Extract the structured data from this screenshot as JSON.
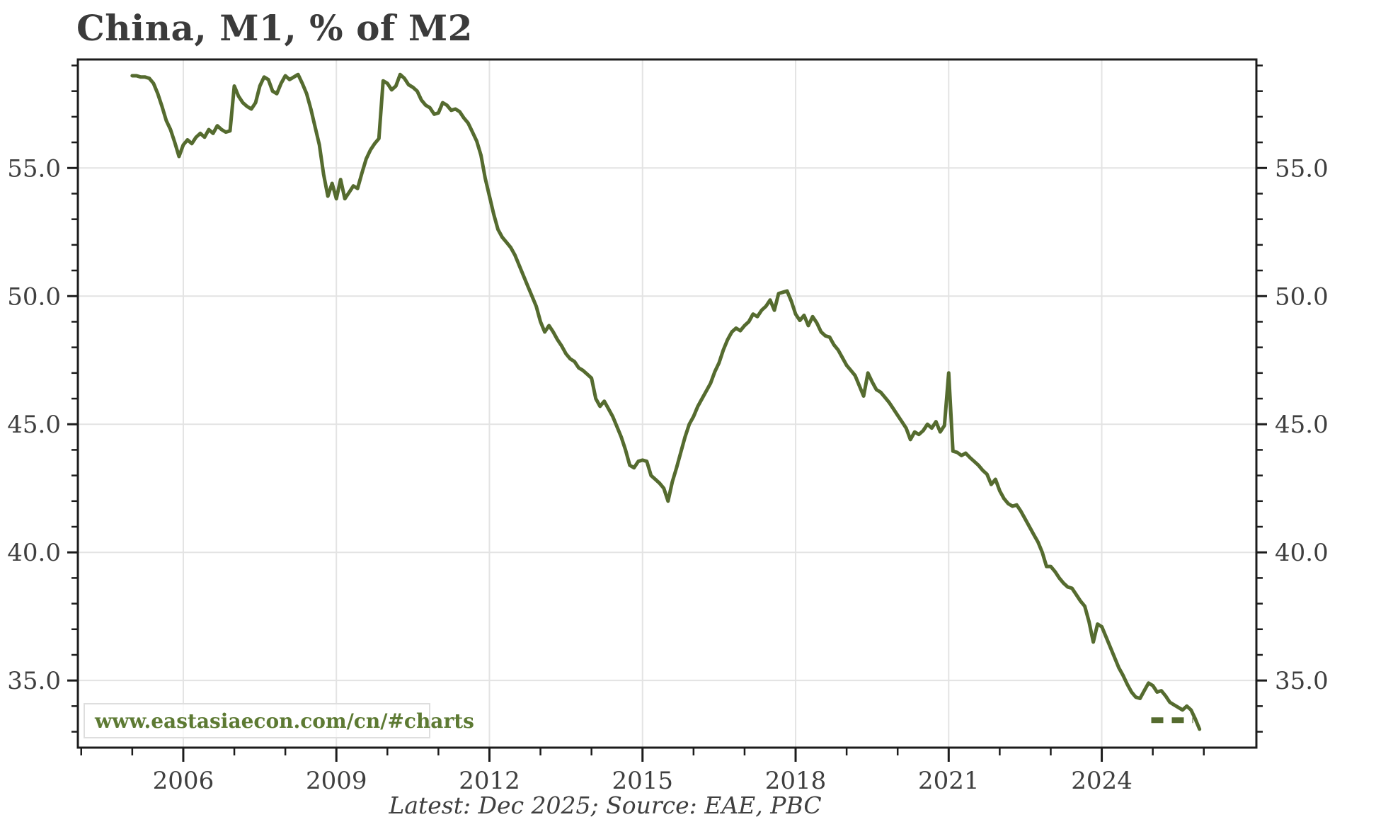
{
  "chart_data": {
    "type": "line",
    "title": "China, M1, % of M2",
    "caption": "Latest: Dec 2025; Source: EAE, PBC",
    "watermark": "www.eastasiaecon.com/cn/#charts",
    "line_color": "#556b2f",
    "grid": true,
    "grid_color": "#e3e3e3",
    "axis_color": "#1c1c1c",
    "label_color": "#3f3f3f",
    "x_axis": {
      "range": [
        2003.934,
        2027.03
      ],
      "major_ticks": [
        2006,
        2009,
        2012,
        2015,
        2018,
        2021,
        2024
      ],
      "major_labels": [
        "2006",
        "2009",
        "2012",
        "2015",
        "2018",
        "2021",
        "2024"
      ],
      "minor_ticks": [
        2004,
        2005,
        2007,
        2008,
        2010,
        2011,
        2013,
        2014,
        2016,
        2017,
        2019,
        2020,
        2022,
        2023,
        2025,
        2026
      ]
    },
    "y_axis": {
      "range": [
        32.38,
        59.235
      ],
      "major_ticks": [
        35,
        40,
        45,
        50,
        55
      ],
      "major_labels": [
        "35.0",
        "40.0",
        "45.0",
        "50.0",
        "55.0"
      ],
      "minor_ticks": [
        33,
        34,
        36,
        37,
        38,
        39,
        41,
        42,
        43,
        44,
        46,
        47,
        48,
        49,
        51,
        52,
        53,
        54,
        56,
        57,
        58,
        59
      ],
      "labels_both_sides": true
    },
    "series": [
      {
        "name": "M1 as % of M2",
        "frequency": "monthly",
        "values_by_year": {
          "2005": [
            58.6,
            58.6,
            58.55,
            58.55,
            58.5,
            58.3,
            57.9,
            57.4,
            56.85,
            56.5,
            56.0,
            55.45
          ],
          "2006": [
            55.9,
            56.1,
            55.95,
            56.2,
            56.35,
            56.2,
            56.5,
            56.35,
            56.65,
            56.5,
            56.4,
            56.45
          ],
          "2007": [
            58.2,
            57.8,
            57.55,
            57.4,
            57.3,
            57.55,
            58.2,
            58.55,
            58.45,
            58.0,
            57.9,
            58.3
          ],
          "2008": [
            58.6,
            58.45,
            58.55,
            58.65,
            58.3,
            57.9,
            57.3,
            56.6,
            55.9,
            54.75,
            53.9,
            54.4
          ],
          "2009": [
            53.8,
            54.55,
            53.8,
            54.05,
            54.3,
            54.2,
            54.8,
            55.35,
            55.7,
            55.95,
            56.15,
            58.4
          ],
          "2010": [
            58.3,
            58.05,
            58.2,
            58.65,
            58.5,
            58.25,
            58.15,
            58.0,
            57.65,
            57.45,
            57.35,
            57.1
          ],
          "2011": [
            57.15,
            57.55,
            57.45,
            57.25,
            57.3,
            57.2,
            56.95,
            56.75,
            56.4,
            56.05,
            55.5,
            54.6
          ],
          "2012": [
            53.9,
            53.2,
            52.6,
            52.3,
            52.1,
            51.9,
            51.6,
            51.2,
            50.8,
            50.4,
            50.0,
            49.6
          ],
          "2013": [
            49.0,
            48.6,
            48.85,
            48.6,
            48.3,
            48.05,
            47.75,
            47.55,
            47.45,
            47.2,
            47.1,
            46.95
          ],
          "2014": [
            46.8,
            46.0,
            45.7,
            45.9,
            45.6,
            45.3,
            44.9,
            44.5,
            44.0,
            43.4,
            43.3,
            43.55
          ],
          "2015": [
            43.6,
            43.55,
            43.0,
            42.85,
            42.7,
            42.5,
            42.0,
            42.75,
            43.3,
            43.9,
            44.5,
            45.0
          ],
          "2016": [
            45.3,
            45.7,
            46.0,
            46.3,
            46.6,
            47.05,
            47.4,
            47.9,
            48.3,
            48.6,
            48.75,
            48.65
          ],
          "2017": [
            48.85,
            49.0,
            49.3,
            49.2,
            49.45,
            49.6,
            49.85,
            49.45,
            50.1,
            50.15,
            50.2,
            49.8
          ],
          "2018": [
            49.3,
            49.05,
            49.25,
            48.85,
            49.2,
            48.95,
            48.6,
            48.45,
            48.4,
            48.1,
            47.9,
            47.6
          ],
          "2019": [
            47.3,
            47.1,
            46.9,
            46.5,
            46.1,
            47.0,
            46.65,
            46.35,
            46.25,
            46.05,
            45.85,
            45.6
          ],
          "2020": [
            45.35,
            45.1,
            44.85,
            44.4,
            44.7,
            44.6,
            44.75,
            45.0,
            44.85,
            45.1,
            44.7,
            44.95
          ],
          "2021": [
            47.0,
            43.95,
            43.9,
            43.78,
            43.87,
            43.7,
            43.55,
            43.4,
            43.2,
            43.05,
            42.65,
            42.85
          ],
          "2022": [
            42.4,
            42.1,
            41.9,
            41.8,
            41.85,
            41.6,
            41.3,
            41.0,
            40.7,
            40.4,
            40.0,
            39.45
          ],
          "2023": [
            39.45,
            39.25,
            39.0,
            38.8,
            38.65,
            38.6,
            38.35,
            38.1,
            37.9,
            37.3,
            36.5,
            37.2
          ],
          "2024": [
            37.1,
            36.7,
            36.3,
            35.9,
            35.5,
            35.2,
            34.85,
            34.55,
            34.35,
            34.3,
            34.6,
            34.9
          ],
          "2025": [
            34.8,
            34.55,
            34.6,
            34.4,
            34.15,
            34.05,
            33.95,
            33.85,
            34.0,
            33.85,
            33.5,
            33.1
          ]
        }
      }
    ],
    "annotation_dash": {
      "value": 33.45,
      "from": 2024.97,
      "to": 2025.79
    }
  }
}
